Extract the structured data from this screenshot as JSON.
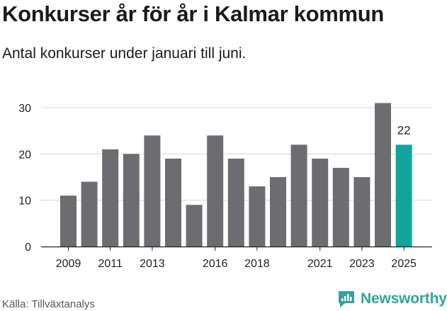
{
  "title": "Konkurser år för år i Kalmar kommun",
  "subtitle": "Antal konkurser under januari till juni.",
  "source": "Källa: Tillväxtanalys",
  "brand": {
    "name": "Newsworthy",
    "color": "#33a39b"
  },
  "chart_data": {
    "type": "bar",
    "categories": [
      "2009",
      "2010",
      "2011",
      "2012",
      "2013",
      "2014",
      "2015",
      "2016",
      "2017",
      "2018",
      "2019",
      "2020",
      "2021",
      "2022",
      "2023",
      "2024",
      "2025"
    ],
    "values": [
      11,
      14,
      21,
      20,
      24,
      19,
      9,
      24,
      19,
      13,
      15,
      22,
      19,
      17,
      15,
      31,
      22
    ],
    "x_tick_labels": [
      "2009",
      "2011",
      "2013",
      "2016",
      "2018",
      "2021",
      "2023",
      "2025"
    ],
    "y_ticks": [
      "0",
      "10",
      "20",
      "30"
    ],
    "ylim": [
      0,
      32
    ],
    "grid": true,
    "highlight": {
      "category": "2025",
      "label": "22",
      "color": "#13a49b"
    },
    "bar_color": "#6d6c70",
    "xlabel": "",
    "ylabel": ""
  }
}
